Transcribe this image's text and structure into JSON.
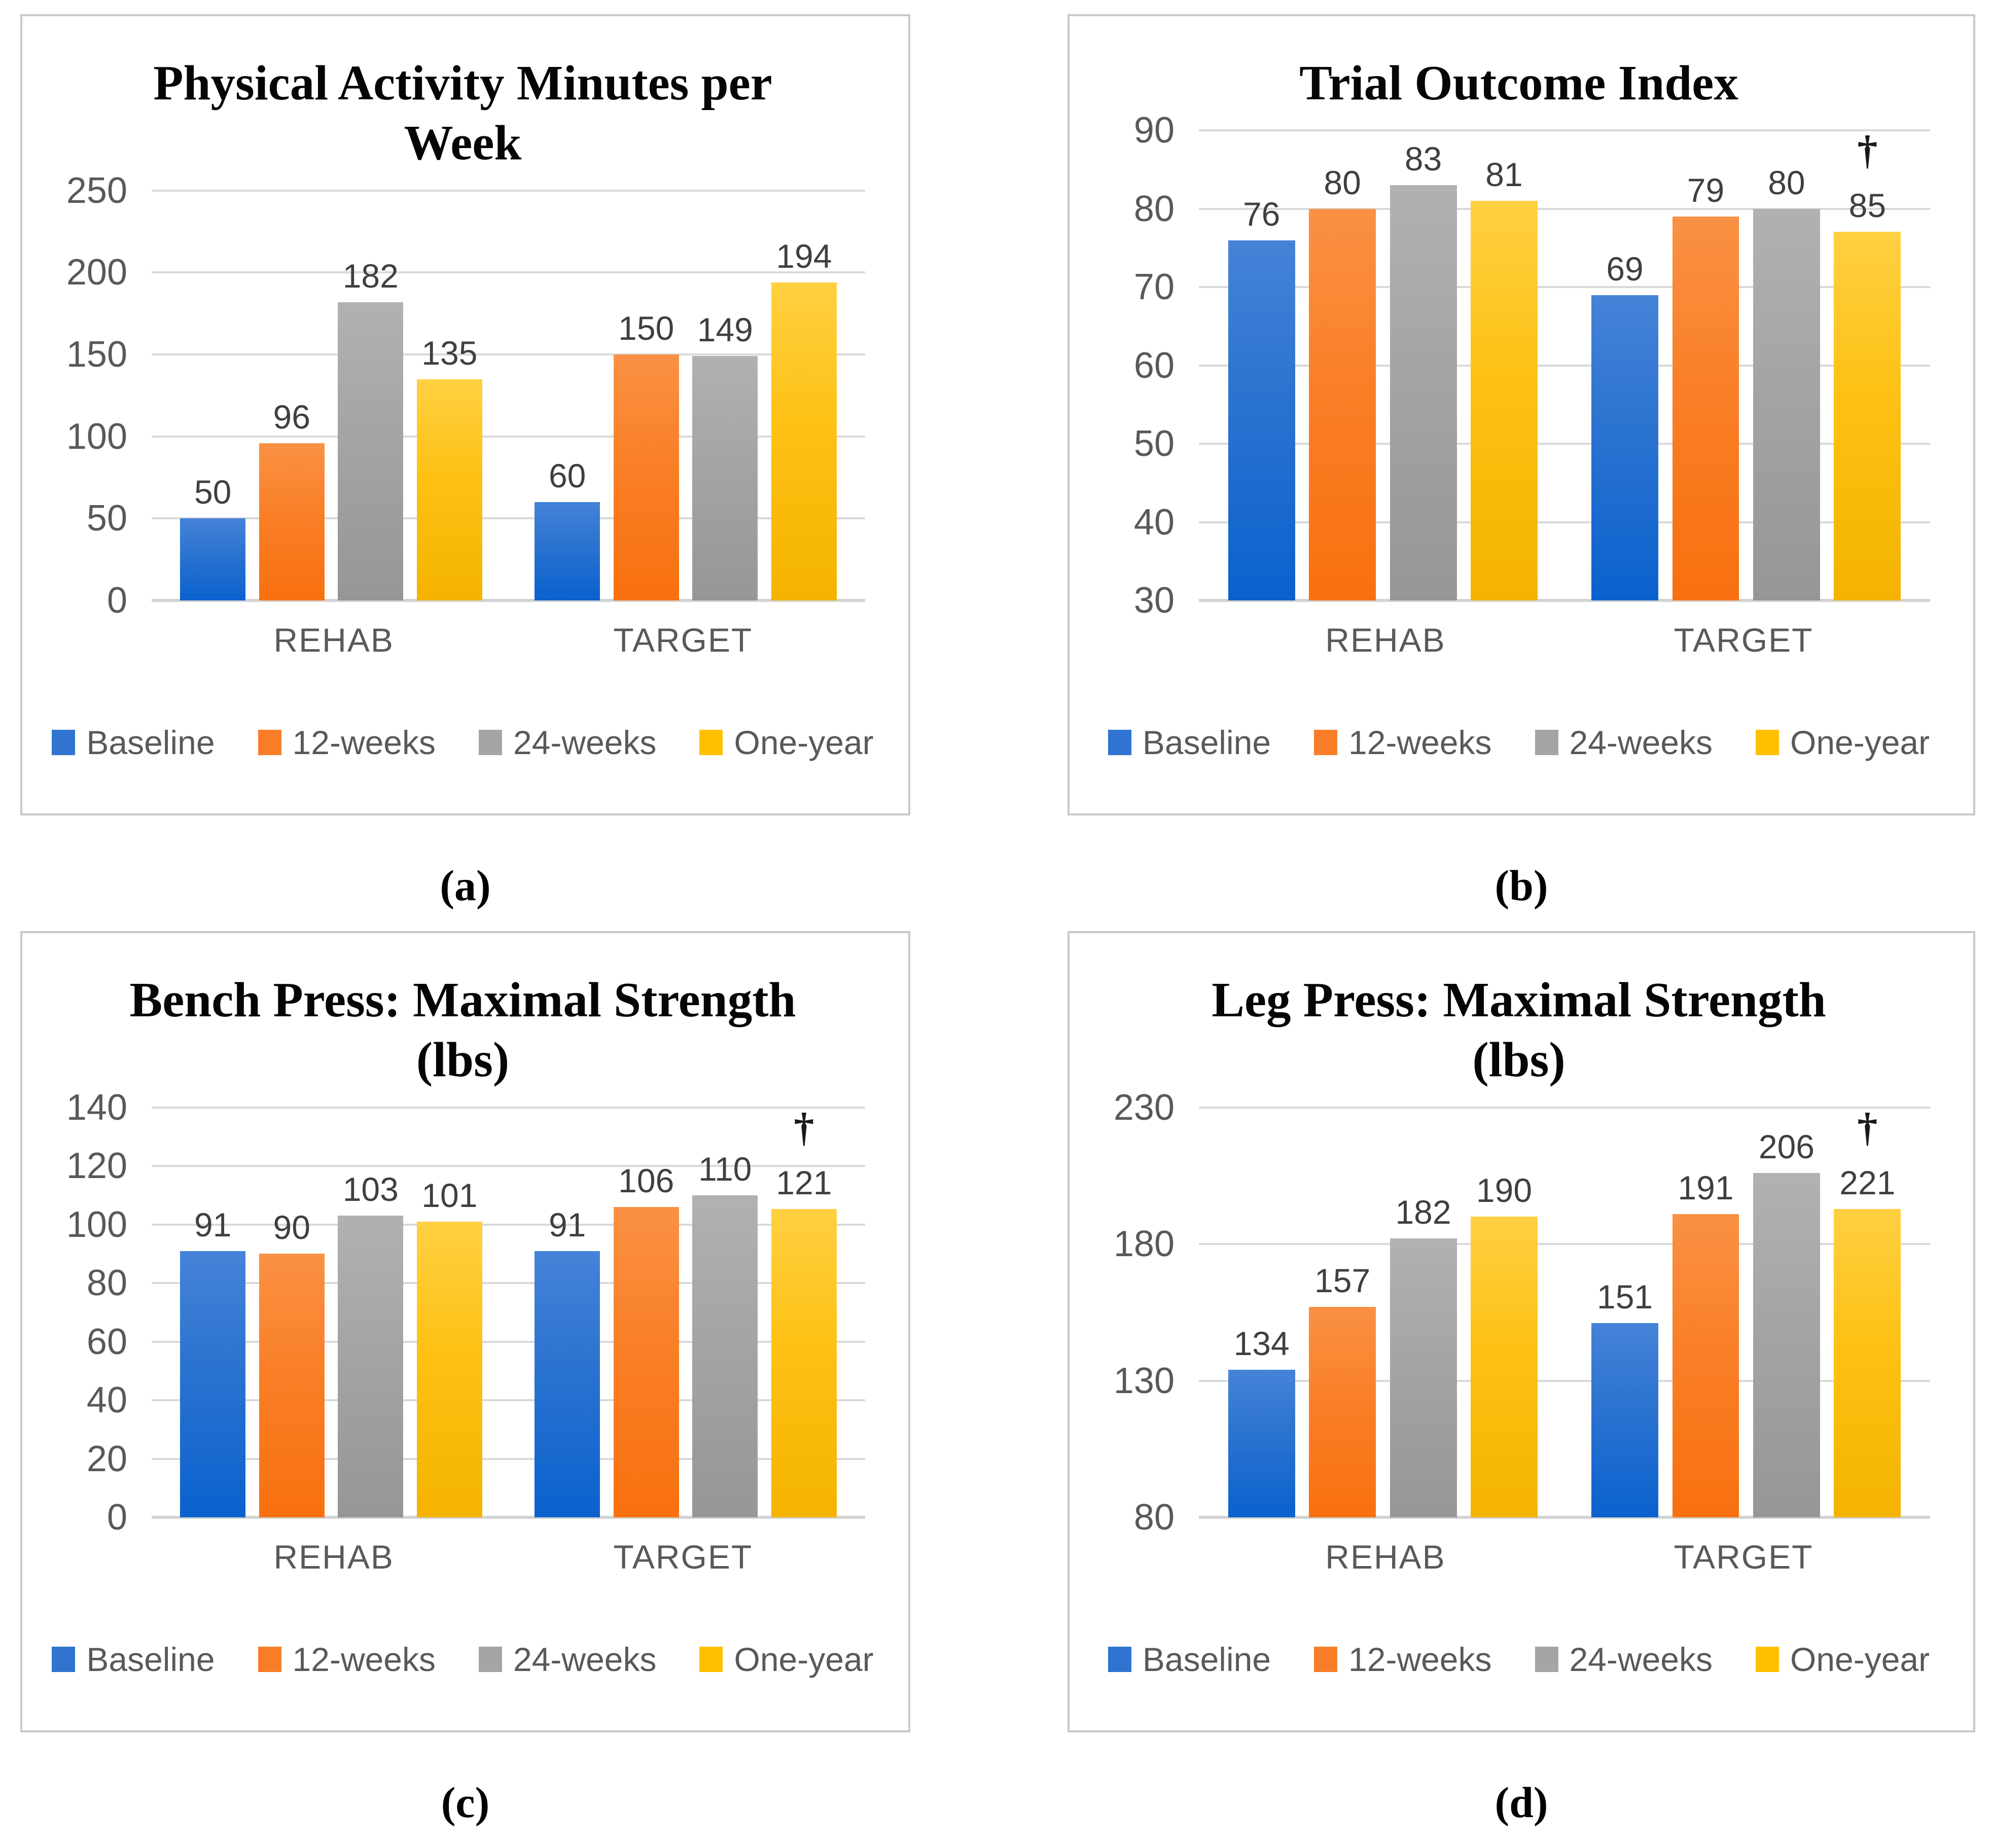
{
  "figure": {
    "background": "#FFFFFF",
    "panel_border_color": "#C9C9C9",
    "gridline_color": "#D9D9D9",
    "axis_text_color": "#595959",
    "data_label_color": "#3F3F3F"
  },
  "series_colors": {
    "Baseline": "#2E74D0",
    "12-weeks": "#F97D28",
    "24-weeks": "#A5A5A5",
    "One-year": "#FFC000"
  },
  "chart_data": [
    {
      "type": "bar",
      "caption": "(a)",
      "title": "Physical Activity Minutes per Week",
      "title_lines": [
        "Physical Activity Minutes per",
        "Week"
      ],
      "dagger": "",
      "xlabel": "",
      "ylabel": "",
      "ylim": [
        0,
        250
      ],
      "yticks": [
        250,
        200,
        150,
        100,
        50,
        0
      ],
      "grid": "on",
      "legend_position": "bottom",
      "categories": [
        "REHAB",
        "TARGET"
      ],
      "series": [
        {
          "name": "Baseline",
          "values": [
            50,
            60
          ]
        },
        {
          "name": "12-weeks",
          "values": [
            96,
            150
          ]
        },
        {
          "name": "24-weeks",
          "values": [
            182,
            149
          ]
        },
        {
          "name": "One-year",
          "values": [
            135,
            194
          ]
        }
      ]
    },
    {
      "type": "bar",
      "caption": "(b)",
      "title": "Trial Outcome Index",
      "title_lines": [
        "Trial Outcome Index"
      ],
      "dagger": "†",
      "xlabel": "",
      "ylabel": "",
      "ylim": [
        30,
        90
      ],
      "yticks": [
        90,
        80,
        70,
        60,
        50,
        40,
        30
      ],
      "grid": "on",
      "legend_position": "bottom",
      "categories": [
        "REHAB",
        "TARGET"
      ],
      "series": [
        {
          "name": "Baseline",
          "values": [
            76,
            69
          ]
        },
        {
          "name": "12-weeks",
          "values": [
            80,
            79
          ]
        },
        {
          "name": "24-weeks",
          "values": [
            83,
            80
          ]
        },
        {
          "name": "One-year",
          "values": [
            81,
            85
          ]
        }
      ]
    },
    {
      "type": "bar",
      "caption": "(c)",
      "title": "Bench Press: Maximal Strength (lbs)",
      "title_lines": [
        "Bench Press: Maximal Strength",
        "(lbs)"
      ],
      "dagger": "†",
      "xlabel": "",
      "ylabel": "",
      "ylim": [
        0,
        140
      ],
      "yticks": [
        140,
        120,
        100,
        80,
        60,
        40,
        20,
        0
      ],
      "grid": "on",
      "legend_position": "bottom",
      "categories": [
        "REHAB",
        "TARGET"
      ],
      "series": [
        {
          "name": "Baseline",
          "values": [
            91,
            91
          ]
        },
        {
          "name": "12-weeks",
          "values": [
            90,
            106
          ]
        },
        {
          "name": "24-weeks",
          "values": [
            103,
            110
          ]
        },
        {
          "name": "One-year",
          "values": [
            101,
            121
          ]
        }
      ]
    },
    {
      "type": "bar",
      "caption": "(d)",
      "title": "Leg Press: Maximal Strength (lbs)",
      "title_lines": [
        "Leg Press: Maximal Strength",
        "(lbs)"
      ],
      "dagger": "†",
      "xlabel": "",
      "ylabel": "",
      "ylim": [
        80,
        230
      ],
      "yticks": [
        230,
        180,
        130,
        80
      ],
      "grid": "on",
      "legend_position": "bottom",
      "categories": [
        "REHAB",
        "TARGET"
      ],
      "series": [
        {
          "name": "Baseline",
          "values": [
            134,
            151
          ]
        },
        {
          "name": "12-weeks",
          "values": [
            157,
            191
          ]
        },
        {
          "name": "24-weeks",
          "values": [
            182,
            206
          ]
        },
        {
          "name": "One-year",
          "values": [
            190,
            221
          ]
        }
      ]
    }
  ]
}
